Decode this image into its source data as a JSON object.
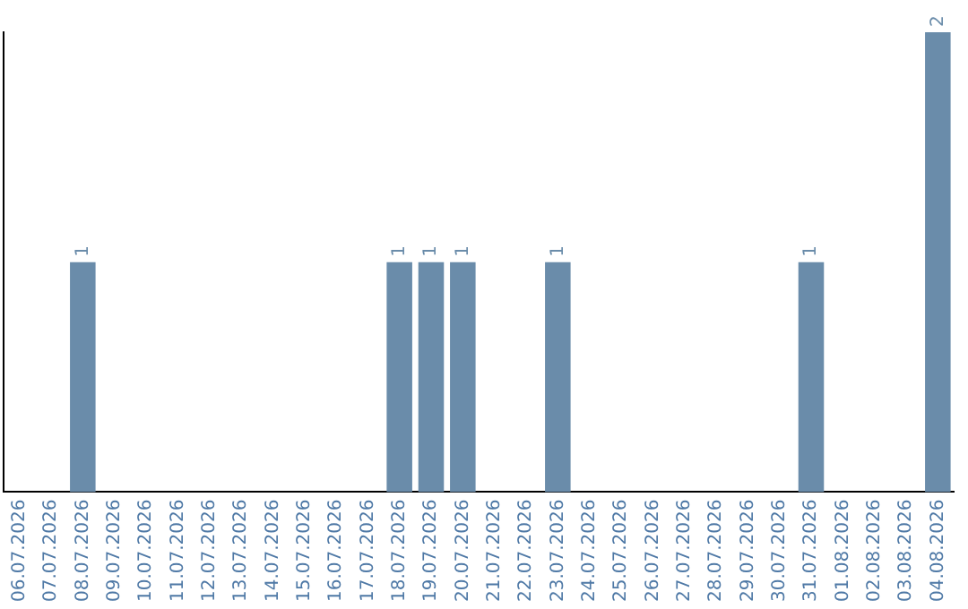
{
  "chart_data": {
    "type": "bar",
    "categories": [
      "06.07.2026",
      "07.07.2026",
      "08.07.2026",
      "09.07.2026",
      "10.07.2026",
      "11.07.2026",
      "12.07.2026",
      "13.07.2026",
      "14.07.2026",
      "15.07.2026",
      "16.07.2026",
      "17.07.2026",
      "18.07.2026",
      "19.07.2026",
      "20.07.2026",
      "21.07.2026",
      "22.07.2026",
      "23.07.2026",
      "24.07.2026",
      "25.07.2026",
      "26.07.2026",
      "27.07.2026",
      "28.07.2026",
      "29.07.2026",
      "30.07.2026",
      "31.07.2026",
      "01.08.2026",
      "02.08.2026",
      "03.08.2026",
      "04.08.2026"
    ],
    "values": [
      0,
      0,
      1,
      0,
      0,
      0,
      0,
      0,
      0,
      0,
      0,
      0,
      1,
      1,
      1,
      0,
      0,
      1,
      0,
      0,
      0,
      0,
      0,
      0,
      0,
      1,
      0,
      0,
      0,
      2
    ],
    "value_labels": [
      null,
      null,
      "1",
      null,
      null,
      null,
      null,
      null,
      null,
      null,
      null,
      null,
      "1",
      "1",
      "1",
      null,
      null,
      "1",
      null,
      null,
      null,
      null,
      null,
      null,
      null,
      "1",
      null,
      null,
      null,
      "2"
    ],
    "color": "#6a8caa",
    "grid": false,
    "legend": false,
    "tick_labels": "x"
  }
}
